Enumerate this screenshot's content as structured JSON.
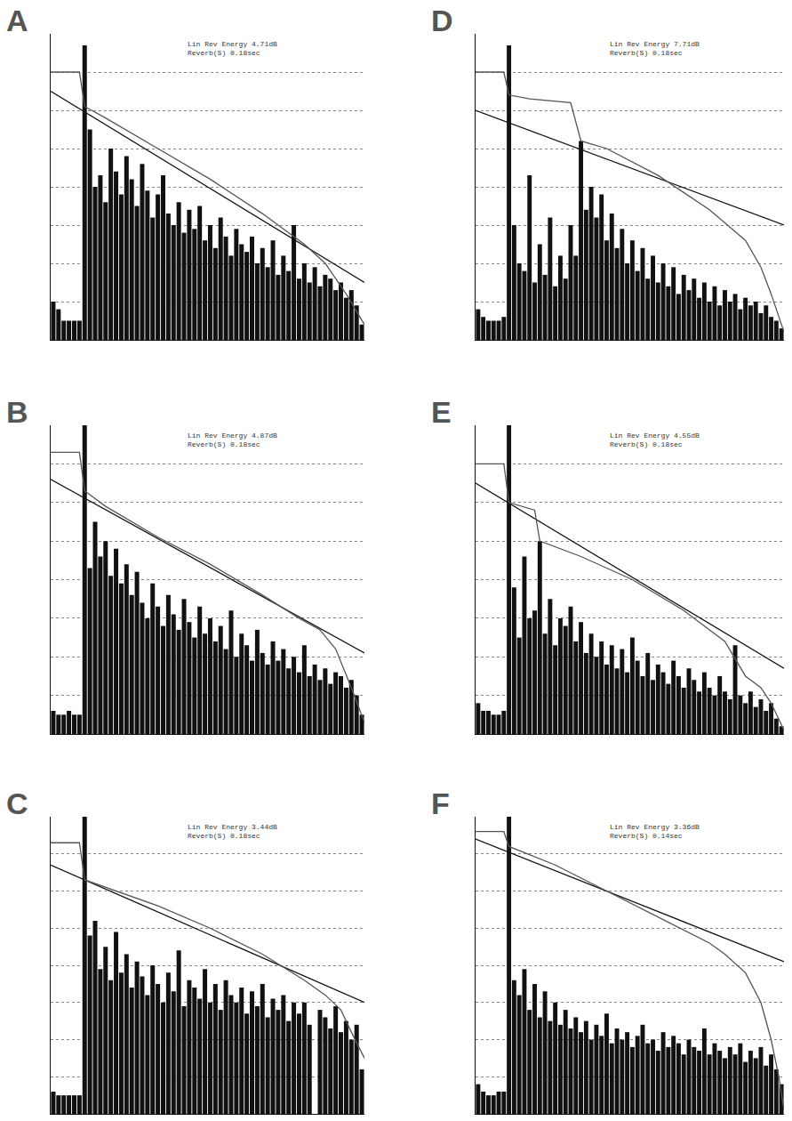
{
  "chart_data": [
    {
      "type": "bar",
      "title": "A",
      "annotations": [
        "Lin Rev Energy 4.71dB",
        "Reverb(S) 0.18sec"
      ],
      "xlim": [
        -0.5,
        59.5
      ],
      "ylim": [
        0,
        8
      ],
      "yticks": [
        0,
        1,
        2,
        3,
        4,
        5,
        6,
        7,
        8
      ],
      "grid": true,
      "tick_labels": false,
      "series": [
        {
          "type": "bar",
          "color": "#111111",
          "values": [
            1.0,
            0.8,
            0.5,
            0.5,
            0.5,
            0.5,
            7.7,
            5.5,
            4.0,
            4.3,
            3.6,
            5.0,
            4.4,
            3.8,
            4.8,
            4.2,
            3.5,
            4.6,
            3.9,
            3.2,
            3.8,
            4.3,
            3.3,
            3.0,
            3.6,
            2.8,
            3.4,
            2.9,
            3.5,
            2.6,
            3.0,
            2.4,
            3.2,
            2.7,
            2.2,
            2.9,
            2.5,
            2.3,
            2.7,
            2.0,
            2.4,
            1.9,
            2.6,
            1.7,
            2.2,
            1.8,
            3.0,
            1.6,
            2.0,
            1.5,
            1.9,
            1.4,
            1.7,
            1.6,
            1.3,
            1.5,
            1.1,
            1.3,
            0.9,
            0.4
          ]
        },
        {
          "type": "line",
          "color": "#111111",
          "x": [
            -0.5,
            59.5
          ],
          "values": [
            6.5,
            1.5
          ]
        },
        {
          "type": "line",
          "color": "#555555",
          "x": [
            -0.5,
            5,
            6,
            10,
            20,
            30,
            40,
            48,
            52,
            56,
            59.5
          ],
          "values": [
            7.0,
            7.0,
            6.1,
            5.8,
            5.0,
            4.2,
            3.3,
            2.5,
            2.0,
            1.2,
            0.4
          ]
        }
      ]
    },
    {
      "type": "bar",
      "title": "B",
      "annotations": [
        "Lin Rev Energy 4.87dB",
        "Reverb(S) 0.18sec"
      ],
      "xlim": [
        -0.5,
        59.5
      ],
      "ylim": [
        0,
        8
      ],
      "yticks": [
        0,
        1,
        2,
        3,
        4,
        5,
        6,
        7,
        8
      ],
      "grid": true,
      "tick_labels": false,
      "series": [
        {
          "type": "bar",
          "color": "#111111",
          "values": [
            0.6,
            0.5,
            0.5,
            0.6,
            0.5,
            0.5,
            8.0,
            4.3,
            5.5,
            4.6,
            5.0,
            4.1,
            4.8,
            3.9,
            4.4,
            3.6,
            4.2,
            3.4,
            3.0,
            3.9,
            3.3,
            2.8,
            3.6,
            3.1,
            2.7,
            3.5,
            2.9,
            2.5,
            3.3,
            2.6,
            3.0,
            2.4,
            2.8,
            2.2,
            3.2,
            2.0,
            2.6,
            2.3,
            1.9,
            2.7,
            2.1,
            1.8,
            2.4,
            1.9,
            2.2,
            1.7,
            2.0,
            1.6,
            2.3,
            1.5,
            1.8,
            1.4,
            1.7,
            1.3,
            1.6,
            1.5,
            1.2,
            1.4,
            1.0,
            0.5
          ]
        },
        {
          "type": "line",
          "color": "#111111",
          "x": [
            -0.5,
            59.5
          ],
          "values": [
            6.6,
            2.1
          ]
        },
        {
          "type": "line",
          "color": "#555555",
          "x": [
            -0.5,
            5,
            6,
            10,
            20,
            30,
            40,
            47,
            51,
            54,
            57,
            59.5
          ],
          "values": [
            7.3,
            7.3,
            6.3,
            5.9,
            5.1,
            4.4,
            3.6,
            3.0,
            2.7,
            2.2,
            1.2,
            0.3
          ]
        }
      ]
    },
    {
      "type": "bar",
      "title": "C",
      "annotations": [
        "Lin Rev Energy 3.44dB",
        "Reverb(S) 0.18sec"
      ],
      "xlim": [
        -0.5,
        59.5
      ],
      "ylim": [
        0,
        8
      ],
      "yticks": [
        0,
        1,
        2,
        3,
        4,
        5,
        6,
        7,
        8
      ],
      "grid": true,
      "tick_labels": false,
      "series": [
        {
          "type": "bar",
          "color": "#111111",
          "values": [
            0.6,
            0.5,
            0.5,
            0.5,
            0.5,
            0.5,
            8.0,
            4.8,
            5.2,
            3.9,
            4.5,
            3.6,
            4.9,
            3.8,
            4.3,
            3.4,
            4.1,
            3.7,
            3.2,
            4.0,
            3.5,
            3.0,
            3.8,
            3.3,
            4.4,
            2.9,
            3.6,
            3.4,
            3.1,
            3.9,
            3.0,
            3.5,
            2.8,
            3.6,
            3.2,
            3.0,
            3.4,
            2.7,
            3.3,
            2.9,
            3.5,
            2.6,
            3.1,
            2.8,
            3.2,
            2.5,
            3.0,
            2.7,
            3.0,
            2.4,
            0.0,
            2.8,
            2.6,
            2.3,
            2.9,
            2.2,
            2.5,
            2.0,
            2.4,
            1.2
          ]
        },
        {
          "type": "line",
          "color": "#111111",
          "x": [
            -0.5,
            59.5
          ],
          "values": [
            6.7,
            3.0
          ]
        },
        {
          "type": "line",
          "color": "#555555",
          "x": [
            -0.5,
            5,
            6,
            10,
            20,
            30,
            40,
            48,
            52,
            55,
            57,
            59.5
          ],
          "values": [
            7.3,
            7.3,
            6.3,
            6.1,
            5.6,
            5.0,
            4.3,
            3.6,
            3.2,
            2.8,
            2.2,
            1.5
          ]
        }
      ]
    },
    {
      "type": "bar",
      "title": "D",
      "annotations": [
        "Lin Rev Energy 7.71dB",
        "Reverb(S) 0.18sec"
      ],
      "xlim": [
        -0.5,
        59.5
      ],
      "ylim": [
        0,
        8
      ],
      "yticks": [
        0,
        1,
        2,
        3,
        4,
        5,
        6,
        7,
        8
      ],
      "grid": true,
      "tick_labels": false,
      "series": [
        {
          "type": "bar",
          "color": "#111111",
          "values": [
            0.8,
            0.6,
            0.5,
            0.5,
            0.5,
            0.6,
            7.7,
            3.0,
            2.0,
            1.8,
            4.3,
            1.5,
            2.5,
            1.7,
            3.2,
            1.4,
            2.2,
            1.6,
            3.0,
            2.2,
            5.2,
            3.4,
            4.0,
            3.2,
            3.8,
            2.6,
            3.3,
            2.4,
            2.9,
            2.0,
            2.6,
            1.8,
            2.4,
            1.6,
            2.2,
            1.5,
            2.0,
            1.4,
            1.9,
            1.2,
            1.7,
            1.3,
            1.6,
            1.1,
            1.5,
            1.0,
            1.4,
            0.9,
            1.3,
            1.0,
            1.2,
            0.8,
            1.1,
            0.9,
            1.0,
            0.7,
            0.9,
            0.6,
            0.5,
            0.3
          ]
        },
        {
          "type": "line",
          "color": "#111111",
          "x": [
            -0.5,
            59.5
          ],
          "values": [
            6.0,
            3.0
          ]
        },
        {
          "type": "line",
          "color": "#555555",
          "x": [
            -0.5,
            5,
            6,
            10,
            18,
            20,
            25,
            35,
            45,
            52,
            55,
            57,
            59.5
          ],
          "values": [
            7.0,
            7.0,
            6.4,
            6.3,
            6.2,
            5.2,
            5.0,
            4.3,
            3.4,
            2.6,
            1.9,
            1.2,
            0.2
          ]
        }
      ]
    },
    {
      "type": "bar",
      "title": "E",
      "annotations": [
        "Lin Rev Energy 4.55dB",
        "Reverb(S) 0.18sec"
      ],
      "xlim": [
        -0.5,
        59.5
      ],
      "ylim": [
        0,
        8
      ],
      "yticks": [
        0,
        1,
        2,
        3,
        4,
        5,
        6,
        7,
        8
      ],
      "grid": true,
      "tick_labels": false,
      "series": [
        {
          "type": "bar",
          "color": "#111111",
          "values": [
            0.8,
            0.6,
            0.6,
            0.5,
            0.5,
            0.6,
            8.0,
            3.8,
            2.5,
            4.6,
            3.0,
            3.2,
            5.0,
            2.6,
            3.5,
            2.3,
            3.0,
            2.8,
            3.3,
            2.4,
            2.9,
            2.1,
            2.6,
            2.0,
            2.4,
            1.8,
            2.3,
            1.7,
            2.2,
            1.6,
            2.5,
            1.9,
            1.5,
            2.1,
            1.4,
            1.8,
            1.6,
            1.3,
            1.9,
            1.5,
            1.2,
            1.7,
            1.4,
            1.1,
            1.6,
            1.2,
            1.0,
            1.5,
            1.1,
            0.9,
            2.3,
            1.0,
            0.8,
            1.1,
            0.7,
            0.9,
            0.6,
            0.8,
            0.4,
            0.2
          ]
        },
        {
          "type": "line",
          "color": "#111111",
          "x": [
            -0.5,
            59.5
          ],
          "values": [
            6.5,
            1.7
          ]
        },
        {
          "type": "line",
          "color": "#555555",
          "x": [
            -0.5,
            5,
            6,
            11,
            12,
            20,
            30,
            40,
            48,
            52,
            55,
            57,
            59.5
          ],
          "values": [
            7.0,
            7.0,
            6.0,
            5.8,
            5.0,
            4.6,
            4.0,
            3.2,
            2.4,
            1.5,
            1.2,
            0.8,
            0.1
          ]
        }
      ]
    },
    {
      "type": "bar",
      "title": "F",
      "annotations": [
        "Lin Rev Energy 3.36dB",
        "Reverb(S) 0.14sec"
      ],
      "xlim": [
        -0.5,
        59.5
      ],
      "ylim": [
        0,
        8
      ],
      "yticks": [
        0,
        1,
        2,
        3,
        4,
        5,
        6,
        7,
        8
      ],
      "grid": true,
      "tick_labels": false,
      "series": [
        {
          "type": "bar",
          "color": "#111111",
          "values": [
            0.8,
            0.6,
            0.5,
            0.5,
            0.6,
            0.6,
            8.0,
            3.6,
            3.2,
            3.9,
            2.8,
            3.5,
            2.6,
            3.3,
            2.5,
            3.0,
            2.4,
            2.8,
            2.3,
            2.6,
            2.2,
            2.5,
            2.0,
            2.4,
            2.1,
            2.7,
            1.9,
            2.3,
            2.0,
            2.2,
            1.8,
            2.1,
            2.4,
            1.9,
            2.0,
            1.7,
            2.2,
            1.8,
            2.1,
            1.9,
            1.6,
            2.0,
            1.8,
            1.7,
            2.3,
            1.6,
            1.9,
            1.7,
            1.5,
            1.8,
            1.6,
            1.9,
            1.4,
            1.7,
            1.5,
            1.8,
            1.3,
            1.6,
            1.2,
            0.8
          ]
        },
        {
          "type": "line",
          "color": "#111111",
          "x": [
            -0.5,
            59.5
          ],
          "values": [
            7.4,
            4.1
          ]
        },
        {
          "type": "line",
          "color": "#555555",
          "x": [
            -0.5,
            5,
            6,
            15,
            25,
            35,
            45,
            48,
            52,
            55,
            57,
            58.5,
            59.5
          ],
          "values": [
            7.6,
            7.6,
            7.2,
            6.7,
            6.0,
            5.3,
            4.6,
            4.3,
            3.8,
            3.0,
            2.0,
            1.0,
            0.1
          ]
        }
      ]
    }
  ]
}
